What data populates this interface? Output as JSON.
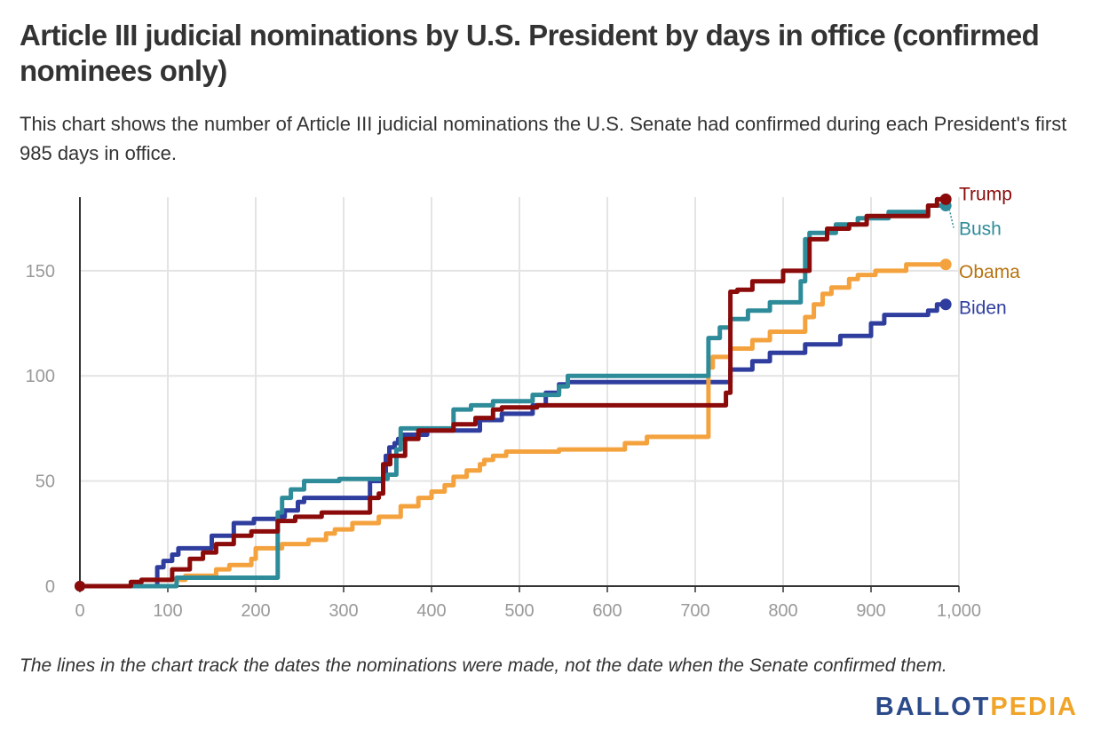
{
  "title": "Article III judicial nominations by U.S. President by days in office (confirmed nominees only)",
  "subtitle": "This chart shows the number of Article III judicial nominations the U.S. Senate had confirmed during each President's first 985 days in office.",
  "note": "The lines in the chart track the dates the nominations were made, not the date when the Senate confirmed them.",
  "logo": {
    "part1": "BALLOT",
    "part2": "PEDIA"
  },
  "chart_data": {
    "type": "line",
    "title": "Article III judicial nominations by U.S. President by days in office (confirmed nominees only)",
    "xlabel": "",
    "ylabel": "",
    "xlim": [
      0,
      1000
    ],
    "ylim": [
      0,
      185
    ],
    "x_ticks": [
      0,
      100,
      200,
      300,
      400,
      500,
      600,
      700,
      800,
      900,
      1000
    ],
    "x_tick_labels": [
      "0",
      "100",
      "200",
      "300",
      "400",
      "500",
      "600",
      "700",
      "800",
      "900",
      "1,000"
    ],
    "y_ticks": [
      0,
      50,
      100,
      150
    ],
    "y_tick_labels": [
      "0",
      "50",
      "100",
      "150"
    ],
    "grid": true,
    "legend": "end-of-line labels",
    "series": [
      {
        "name": "Biden",
        "color": "#2f3e9e",
        "points": [
          [
            0,
            0
          ],
          [
            88,
            0
          ],
          [
            88,
            9
          ],
          [
            95,
            9
          ],
          [
            95,
            12
          ],
          [
            105,
            12
          ],
          [
            105,
            15
          ],
          [
            112,
            15
          ],
          [
            112,
            18
          ],
          [
            150,
            18
          ],
          [
            150,
            24
          ],
          [
            175,
            24
          ],
          [
            175,
            30
          ],
          [
            198,
            30
          ],
          [
            198,
            32
          ],
          [
            225,
            32
          ],
          [
            225,
            33
          ],
          [
            233,
            33
          ],
          [
            233,
            36
          ],
          [
            248,
            36
          ],
          [
            248,
            40
          ],
          [
            255,
            40
          ],
          [
            255,
            42
          ],
          [
            330,
            42
          ],
          [
            330,
            50
          ],
          [
            345,
            50
          ],
          [
            345,
            52
          ],
          [
            348,
            52
          ],
          [
            348,
            62
          ],
          [
            352,
            62
          ],
          [
            352,
            66
          ],
          [
            358,
            66
          ],
          [
            358,
            68
          ],
          [
            362,
            68
          ],
          [
            362,
            70
          ],
          [
            368,
            70
          ],
          [
            368,
            72
          ],
          [
            395,
            72
          ],
          [
            395,
            74
          ],
          [
            455,
            74
          ],
          [
            455,
            79
          ],
          [
            480,
            79
          ],
          [
            480,
            82
          ],
          [
            515,
            82
          ],
          [
            515,
            86
          ],
          [
            530,
            86
          ],
          [
            530,
            92
          ],
          [
            545,
            92
          ],
          [
            545,
            96
          ],
          [
            555,
            96
          ],
          [
            555,
            97
          ],
          [
            740,
            97
          ],
          [
            740,
            103
          ],
          [
            765,
            103
          ],
          [
            765,
            107
          ],
          [
            785,
            107
          ],
          [
            785,
            111
          ],
          [
            825,
            111
          ],
          [
            825,
            115
          ],
          [
            865,
            115
          ],
          [
            865,
            119
          ],
          [
            900,
            119
          ],
          [
            900,
            125
          ],
          [
            915,
            125
          ],
          [
            915,
            129
          ],
          [
            965,
            129
          ],
          [
            965,
            131
          ],
          [
            975,
            131
          ],
          [
            975,
            134
          ],
          [
            985,
            134
          ]
        ]
      },
      {
        "name": "Obama",
        "color": "#f4a23e",
        "points": [
          [
            0,
            0
          ],
          [
            70,
            0
          ],
          [
            70,
            3
          ],
          [
            120,
            3
          ],
          [
            120,
            5
          ],
          [
            155,
            5
          ],
          [
            155,
            8
          ],
          [
            170,
            8
          ],
          [
            170,
            10
          ],
          [
            195,
            10
          ],
          [
            195,
            13
          ],
          [
            200,
            13
          ],
          [
            200,
            18
          ],
          [
            230,
            18
          ],
          [
            230,
            20
          ],
          [
            260,
            20
          ],
          [
            260,
            22
          ],
          [
            280,
            22
          ],
          [
            280,
            25
          ],
          [
            290,
            25
          ],
          [
            290,
            27
          ],
          [
            310,
            27
          ],
          [
            310,
            30
          ],
          [
            340,
            30
          ],
          [
            340,
            33
          ],
          [
            365,
            33
          ],
          [
            365,
            38
          ],
          [
            385,
            38
          ],
          [
            385,
            42
          ],
          [
            400,
            42
          ],
          [
            400,
            45
          ],
          [
            415,
            45
          ],
          [
            415,
            48
          ],
          [
            425,
            48
          ],
          [
            425,
            52
          ],
          [
            440,
            52
          ],
          [
            440,
            55
          ],
          [
            455,
            55
          ],
          [
            455,
            58
          ],
          [
            460,
            58
          ],
          [
            460,
            60
          ],
          [
            470,
            60
          ],
          [
            470,
            62
          ],
          [
            485,
            62
          ],
          [
            485,
            64
          ],
          [
            545,
            64
          ],
          [
            545,
            65
          ],
          [
            620,
            65
          ],
          [
            620,
            68
          ],
          [
            645,
            68
          ],
          [
            645,
            71
          ],
          [
            715,
            71
          ],
          [
            715,
            104
          ],
          [
            720,
            104
          ],
          [
            720,
            109
          ],
          [
            740,
            109
          ],
          [
            740,
            113
          ],
          [
            765,
            113
          ],
          [
            765,
            117
          ],
          [
            785,
            117
          ],
          [
            785,
            121
          ],
          [
            825,
            121
          ],
          [
            825,
            128
          ],
          [
            835,
            128
          ],
          [
            835,
            134
          ],
          [
            845,
            134
          ],
          [
            845,
            139
          ],
          [
            855,
            139
          ],
          [
            855,
            142
          ],
          [
            875,
            142
          ],
          [
            875,
            146
          ],
          [
            885,
            146
          ],
          [
            885,
            148
          ],
          [
            905,
            148
          ],
          [
            905,
            150
          ],
          [
            940,
            150
          ],
          [
            940,
            153
          ],
          [
            985,
            153
          ]
        ]
      },
      {
        "name": "Bush",
        "color": "#2e8b99",
        "points": [
          [
            0,
            0
          ],
          [
            110,
            0
          ],
          [
            110,
            4
          ],
          [
            225,
            4
          ],
          [
            225,
            35
          ],
          [
            230,
            35
          ],
          [
            230,
            42
          ],
          [
            240,
            42
          ],
          [
            240,
            46
          ],
          [
            255,
            46
          ],
          [
            255,
            50
          ],
          [
            295,
            50
          ],
          [
            295,
            51
          ],
          [
            350,
            51
          ],
          [
            350,
            53
          ],
          [
            360,
            53
          ],
          [
            360,
            65
          ],
          [
            365,
            65
          ],
          [
            365,
            75
          ],
          [
            425,
            75
          ],
          [
            425,
            84
          ],
          [
            445,
            84
          ],
          [
            445,
            86
          ],
          [
            470,
            86
          ],
          [
            470,
            88
          ],
          [
            515,
            88
          ],
          [
            515,
            91
          ],
          [
            545,
            91
          ],
          [
            545,
            95
          ],
          [
            555,
            95
          ],
          [
            555,
            100
          ],
          [
            715,
            100
          ],
          [
            715,
            118
          ],
          [
            728,
            118
          ],
          [
            728,
            123
          ],
          [
            740,
            123
          ],
          [
            740,
            127
          ],
          [
            760,
            127
          ],
          [
            760,
            131
          ],
          [
            785,
            131
          ],
          [
            785,
            135
          ],
          [
            820,
            135
          ],
          [
            820,
            145
          ],
          [
            825,
            145
          ],
          [
            825,
            165
          ],
          [
            830,
            165
          ],
          [
            830,
            168
          ],
          [
            860,
            168
          ],
          [
            860,
            172
          ],
          [
            885,
            172
          ],
          [
            885,
            175
          ],
          [
            920,
            175
          ],
          [
            920,
            178
          ],
          [
            965,
            178
          ],
          [
            965,
            181
          ],
          [
            985,
            181
          ]
        ]
      },
      {
        "name": "Trump",
        "color": "#8b0a0a",
        "points": [
          [
            0,
            0
          ],
          [
            58,
            0
          ],
          [
            58,
            2
          ],
          [
            70,
            2
          ],
          [
            70,
            3
          ],
          [
            105,
            3
          ],
          [
            105,
            8
          ],
          [
            125,
            8
          ],
          [
            125,
            13
          ],
          [
            140,
            13
          ],
          [
            140,
            16
          ],
          [
            155,
            16
          ],
          [
            155,
            20
          ],
          [
            175,
            20
          ],
          [
            175,
            24
          ],
          [
            195,
            24
          ],
          [
            195,
            26
          ],
          [
            225,
            26
          ],
          [
            225,
            31
          ],
          [
            245,
            31
          ],
          [
            245,
            33
          ],
          [
            275,
            33
          ],
          [
            275,
            35
          ],
          [
            330,
            35
          ],
          [
            330,
            42
          ],
          [
            340,
            42
          ],
          [
            340,
            44
          ],
          [
            345,
            44
          ],
          [
            345,
            58
          ],
          [
            353,
            58
          ],
          [
            353,
            62
          ],
          [
            370,
            62
          ],
          [
            370,
            70
          ],
          [
            385,
            70
          ],
          [
            385,
            74
          ],
          [
            425,
            74
          ],
          [
            425,
            77
          ],
          [
            450,
            77
          ],
          [
            450,
            80
          ],
          [
            470,
            80
          ],
          [
            470,
            84
          ],
          [
            480,
            84
          ],
          [
            480,
            85
          ],
          [
            520,
            85
          ],
          [
            520,
            86
          ],
          [
            735,
            86
          ],
          [
            735,
            92
          ],
          [
            740,
            92
          ],
          [
            740,
            140
          ],
          [
            748,
            140
          ],
          [
            748,
            141
          ],
          [
            765,
            141
          ],
          [
            765,
            145
          ],
          [
            800,
            145
          ],
          [
            800,
            150
          ],
          [
            830,
            150
          ],
          [
            830,
            165
          ],
          [
            850,
            165
          ],
          [
            850,
            170
          ],
          [
            875,
            170
          ],
          [
            875,
            172
          ],
          [
            895,
            172
          ],
          [
            895,
            176
          ],
          [
            965,
            176
          ],
          [
            965,
            181
          ],
          [
            975,
            181
          ],
          [
            975,
            184
          ],
          [
            985,
            184
          ]
        ]
      }
    ]
  }
}
